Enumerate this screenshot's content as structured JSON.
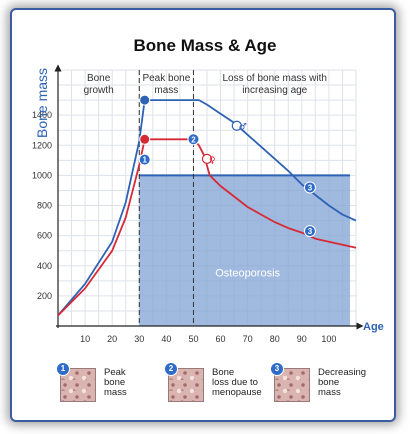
{
  "chart_data": {
    "type": "line",
    "title": "Bone Mass & Age",
    "ylabel": "Bone mass",
    "xlabel": "Age",
    "xlim": [
      0,
      110
    ],
    "ylim": [
      0,
      1700
    ],
    "xticks": [
      10,
      20,
      30,
      40,
      50,
      60,
      70,
      80,
      90,
      100
    ],
    "yticks": [
      200,
      400,
      600,
      800,
      1000,
      1200,
      1400
    ],
    "grid": true,
    "phases": [
      {
        "label": "Bone\ngrowth",
        "x_from": 0,
        "x_to": 30
      },
      {
        "label": "Peak bone\nmass",
        "x_from": 30,
        "x_to": 50
      },
      {
        "label": "Loss of bone mass with\nincreasing age",
        "x_from": 50,
        "x_to": 110
      }
    ],
    "phase_dividers_x": [
      30,
      50
    ],
    "series": [
      {
        "color": "#2e62b4",
        "symbol": "♂",
        "x": [
          0,
          10,
          20,
          25,
          30,
          32,
          50,
          52,
          55,
          60,
          65,
          70,
          75,
          80,
          85,
          90,
          95,
          100,
          105,
          110
        ],
        "y": [
          70,
          280,
          560,
          820,
          1230,
          1500,
          1500,
          1500,
          1470,
          1410,
          1350,
          1270,
          1190,
          1110,
          1030,
          940,
          870,
          800,
          740,
          700
        ]
      },
      {
        "color": "#d62a36",
        "symbol": "♀",
        "x": [
          0,
          10,
          20,
          25,
          30,
          32,
          50,
          52,
          54,
          56,
          60,
          65,
          70,
          75,
          80,
          85,
          90,
          95,
          100,
          105,
          110
        ],
        "y": [
          70,
          250,
          500,
          720,
          1070,
          1240,
          1240,
          1200,
          1130,
          1000,
          930,
          860,
          790,
          740,
          690,
          650,
          620,
          580,
          560,
          540,
          520
        ]
      }
    ],
    "osteoporosis_threshold": 1000,
    "osteoporosis_x_from": 30,
    "osteoporosis_label": "Osteoporosis",
    "markers": [
      {
        "num": "1",
        "x": 32,
        "y": 1105
      },
      {
        "num": "2",
        "x": 50,
        "y": 1240
      },
      {
        "num": "3",
        "x": 93,
        "y": 920
      },
      {
        "num": "3",
        "x": 93,
        "y": 630
      }
    ],
    "colors": {
      "blue_line": "#2e62b4",
      "red_line": "#d62a36",
      "osteoporosis_fill": "#88a8d6",
      "grid": "#dde2ea",
      "marker_fill": "#2f6bc9"
    }
  },
  "legend": [
    {
      "num": "1",
      "label": "Peak\nbone\nmass"
    },
    {
      "num": "2",
      "label": "Bone\nloss due to\nmenopause"
    },
    {
      "num": "3",
      "label": "Decreasing\nbone\nmass"
    }
  ]
}
